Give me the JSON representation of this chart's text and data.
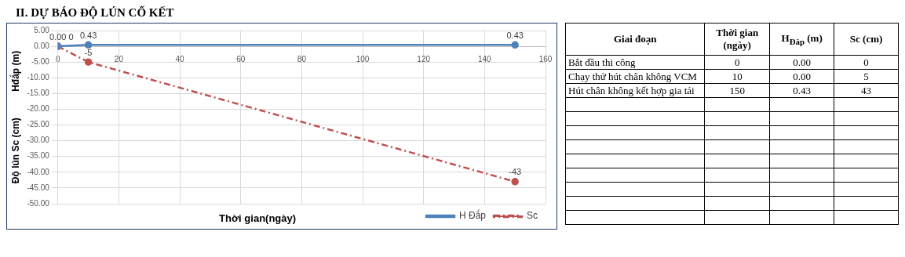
{
  "chart_data": [
    {
      "type": "line",
      "title": "II. DỰ BÁO ĐỘ LÚN CỐ KẾT",
      "xlabel": "Thời gian(ngày)",
      "ylabel": "Độ lún Sc (cm)          Hđắp (m)",
      "xlim": [
        0,
        160
      ],
      "xticks": [
        0,
        20,
        40,
        60,
        80,
        100,
        120,
        140,
        160
      ],
      "ylim": [
        -50,
        5
      ],
      "yticks": [
        {
          "value": 5,
          "label": "5.00"
        },
        {
          "value": 0,
          "label": "0.00"
        },
        {
          "value": -5,
          "label": "-5.00"
        },
        {
          "value": -10,
          "label": "-10.00"
        },
        {
          "value": -15,
          "label": "-15.00"
        },
        {
          "value": -20,
          "label": "-20.00"
        },
        {
          "value": -25,
          "label": "-25.00"
        },
        {
          "value": -30,
          "label": "-30.00"
        },
        {
          "value": -35,
          "label": "-35.00"
        },
        {
          "value": -40,
          "label": "-40.00"
        },
        {
          "value": -45,
          "label": "-45.00"
        },
        {
          "value": -50,
          "label": "-50.00"
        }
      ],
      "grid": true,
      "legend": "bottom right",
      "marker": "circle",
      "series": [
        {
          "name": "H Đắp",
          "color": "#4f81bd",
          "x": [
            0,
            10,
            150
          ],
          "values": [
            0,
            0.43,
            0.43
          ],
          "value_labels": [
            "0.00",
            "0.43",
            "0.43"
          ],
          "line_style": "solid"
        },
        {
          "name": "Sc",
          "color": "#c0504d",
          "x": [
            0,
            10,
            150
          ],
          "values": [
            0,
            -5,
            -43
          ],
          "value_labels": [
            "0",
            "-5",
            "-43"
          ],
          "line_style": "dashed"
        }
      ]
    },
    {
      "type": "other",
      "categories": [
        "Giai đoạn",
        "Thời gian (ngày)",
        "H$_{Đắp}$ (m)",
        "Sc (cm)"
      ],
      "annotations": [
        "Bắt đầu thi công",
        "0",
        "0.00",
        "0",
        "Chạy thử hút chân không VCM",
        "10",
        "0.00",
        "5",
        "Hút chân không kết hợp gia tải",
        "150",
        "0.43",
        "43"
      ]
    }
  ]
}
